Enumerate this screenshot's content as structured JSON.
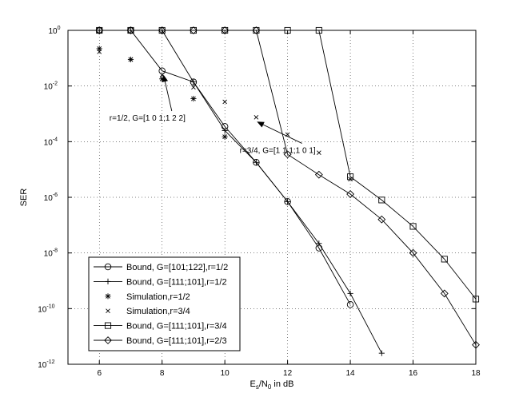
{
  "chart_data": {
    "type": "line",
    "xlabel_main": "E",
    "xlabel_sub": "s",
    "xlabel_mid": "/N",
    "xlabel_sub2": "0",
    "xlabel_tail": " in dB",
    "ylabel": "SER",
    "xlim": [
      5,
      18
    ],
    "ylim_exp": [
      -12,
      0
    ],
    "yscale": "log",
    "grid": true,
    "legend_position": "bottom-left",
    "xticks": [
      "6",
      "8",
      "10",
      "12",
      "14",
      "16",
      "18"
    ],
    "yticks": [
      {
        "base": "10",
        "exp": "0"
      },
      {
        "base": "10",
        "exp": "-2"
      },
      {
        "base": "10",
        "exp": "-4"
      },
      {
        "base": "10",
        "exp": "-6"
      },
      {
        "base": "10",
        "exp": "-8"
      },
      {
        "base": "10",
        "exp": "-10"
      },
      {
        "base": "10",
        "exp": "-12"
      }
    ],
    "series": [
      {
        "name": "Bound, G=[101;122],r=1/2",
        "marker": "circle",
        "line": true,
        "x": [
          6,
          7,
          8,
          9,
          10,
          11,
          12,
          13,
          14
        ],
        "y": [
          1,
          1,
          0.035,
          0.014,
          0.00035,
          1.8e-05,
          7e-07,
          1.5e-08,
          1.4e-10
        ]
      },
      {
        "name": "Bound, G=[111;101],r=1/2",
        "marker": "plus",
        "line": true,
        "x": [
          6,
          7,
          8,
          9,
          10,
          11,
          12,
          13,
          14,
          15
        ],
        "y": [
          1,
          1,
          1,
          0.014,
          0.00025,
          1.8e-05,
          7e-07,
          2.2e-08,
          3.5e-10,
          2.5e-12
        ]
      },
      {
        "name": "Simulation,r=1/2",
        "marker": "star",
        "line": false,
        "x": [
          6,
          7,
          8,
          9,
          10
        ],
        "y": [
          0.22,
          0.09,
          0.018,
          0.0035,
          0.00015
        ]
      },
      {
        "name": "Simulation,r=3/4",
        "marker": "x",
        "line": false,
        "x": [
          6,
          7,
          8,
          9,
          10,
          11,
          12,
          13,
          14
        ],
        "y": [
          0.17,
          0.09,
          0.025,
          0.009,
          0.0027,
          0.00075,
          0.00018,
          4e-05,
          4.5e-06
        ]
      },
      {
        "name": "Bound, G=[111;101],r=3/4",
        "marker": "square",
        "line": true,
        "x": [
          6,
          7,
          8,
          9,
          10,
          11,
          12,
          13,
          14,
          15,
          16,
          17,
          18
        ],
        "y": [
          1,
          1,
          1,
          1,
          1,
          1,
          1,
          1,
          5.5e-06,
          8e-07,
          9e-08,
          6e-09,
          2.2e-10
        ]
      },
      {
        "name": "Bound, G=[111;101],r=2/3",
        "marker": "diamond",
        "line": true,
        "x": [
          6,
          7,
          8,
          9,
          10,
          11,
          12,
          13,
          14,
          15,
          16,
          17,
          18
        ],
        "y": [
          1,
          1,
          1,
          1,
          1,
          1,
          3.5e-05,
          6.5e-06,
          1.3e-06,
          1.6e-07,
          1e-08,
          3.5e-10,
          5e-12
        ]
      }
    ],
    "annotations": [
      {
        "text": "r=1/2, G=[1 0 1;1 2 2]",
        "x": 8,
        "y": 0.035,
        "text_x": 7.85,
        "text_y": 0.00065
      },
      {
        "text": "r=3/4, G=[1 1 1;1 0 1]",
        "x": 11,
        "y": 0.00075,
        "text_x": 12.0,
        "text_y": 4.5e-05
      }
    ]
  }
}
